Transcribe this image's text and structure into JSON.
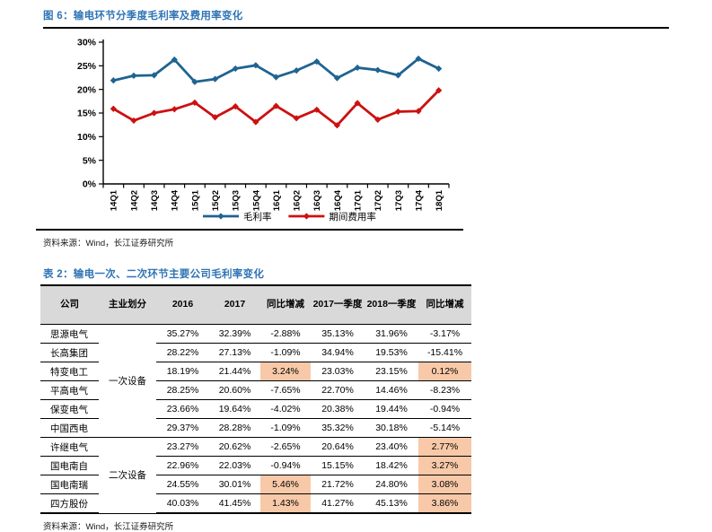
{
  "figure": {
    "title": "图 6：输电环节分季度毛利率及费用率变化",
    "source": "资料来源：Wind，长江证券研究所"
  },
  "chart_data": {
    "type": "line",
    "title": "输电环节分季度毛利率及费用率变化",
    "categories": [
      "14Q1",
      "14Q2",
      "14Q3",
      "14Q4",
      "15Q1",
      "15Q2",
      "15Q3",
      "15Q4",
      "16Q1",
      "16Q2",
      "16Q3",
      "16Q4",
      "17Q1",
      "17Q2",
      "17Q3",
      "17Q4",
      "18Q1"
    ],
    "series": [
      {
        "name": "毛利率",
        "color": "#1F6391",
        "values": [
          21.9,
          22.9,
          23.0,
          26.3,
          21.6,
          22.2,
          24.4,
          25.1,
          22.6,
          24.0,
          25.9,
          22.4,
          24.6,
          24.1,
          23.0,
          26.5,
          24.4
        ]
      },
      {
        "name": "期间费用率",
        "color": "#CC1111",
        "values": [
          15.9,
          13.4,
          15.0,
          15.8,
          17.2,
          14.1,
          16.4,
          13.1,
          16.5,
          13.9,
          15.7,
          12.4,
          17.1,
          13.6,
          15.3,
          15.4,
          19.8
        ]
      }
    ],
    "ylim": [
      0,
      30
    ],
    "ytick_step": 5,
    "ytick_labels": [
      "0%",
      "5%",
      "10%",
      "15%",
      "20%",
      "25%",
      "30%"
    ],
    "xlabel": "",
    "ylabel": "",
    "grid": false,
    "legend_position": "bottom",
    "marker": "diamond"
  },
  "table": {
    "title": "表 2：输电一次、二次环节主要公司毛利率变化",
    "source": "资料来源：Wind，长江证券研究所",
    "headers": [
      "公司",
      "主业划分",
      "2016",
      "2017",
      "同比增减",
      "2017一季度",
      "2018一季度",
      "同比增减"
    ],
    "groups": [
      {
        "label": "一次设备",
        "span": 6
      },
      {
        "label": "二次设备",
        "span": 4
      }
    ],
    "rows": [
      {
        "company": "思源电气",
        "values": [
          "35.27%",
          "32.39%",
          "-2.88%",
          "35.13%",
          "31.96%",
          "-3.17%"
        ],
        "highlight": []
      },
      {
        "company": "长高集团",
        "values": [
          "28.22%",
          "27.13%",
          "-1.09%",
          "34.94%",
          "19.53%",
          "-15.41%"
        ],
        "highlight": []
      },
      {
        "company": "特变电工",
        "values": [
          "18.19%",
          "21.44%",
          "3.24%",
          "23.03%",
          "23.15%",
          "0.12%"
        ],
        "highlight": [
          2,
          5
        ]
      },
      {
        "company": "平高电气",
        "values": [
          "28.25%",
          "20.60%",
          "-7.65%",
          "22.70%",
          "14.46%",
          "-8.23%"
        ],
        "highlight": []
      },
      {
        "company": "保变电气",
        "values": [
          "23.66%",
          "19.64%",
          "-4.02%",
          "20.38%",
          "19.44%",
          "-0.94%"
        ],
        "highlight": []
      },
      {
        "company": "中国西电",
        "values": [
          "29.37%",
          "28.28%",
          "-1.09%",
          "35.32%",
          "30.18%",
          "-5.14%"
        ],
        "highlight": []
      },
      {
        "company": "许继电气",
        "values": [
          "23.27%",
          "20.62%",
          "-2.65%",
          "20.64%",
          "23.40%",
          "2.77%"
        ],
        "highlight": [
          5
        ]
      },
      {
        "company": "国电南自",
        "values": [
          "22.96%",
          "22.03%",
          "-0.94%",
          "15.15%",
          "18.42%",
          "3.27%"
        ],
        "highlight": [
          5
        ]
      },
      {
        "company": "国电南瑞",
        "values": [
          "24.55%",
          "30.01%",
          "5.46%",
          "21.72%",
          "24.80%",
          "3.08%"
        ],
        "highlight": [
          2,
          5
        ]
      },
      {
        "company": "四方股份",
        "values": [
          "40.03%",
          "41.45%",
          "1.43%",
          "41.27%",
          "45.13%",
          "3.86%"
        ],
        "highlight": [
          2,
          5
        ]
      }
    ],
    "highlight_color": "#F8C9A8",
    "header_bg": "#D9D9D9"
  },
  "colors": {
    "accent_blue": "#2E74B5",
    "line_blue": "#1F6391",
    "line_red": "#CC1111",
    "rule_black": "#000000"
  }
}
